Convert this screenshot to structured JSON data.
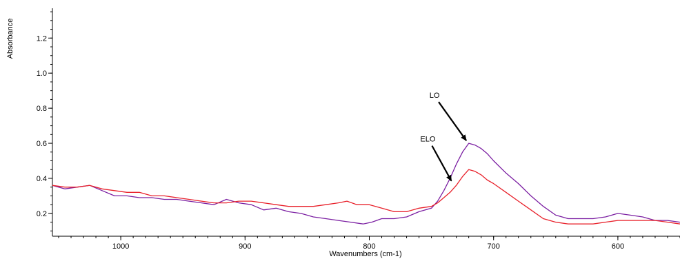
{
  "chart_data": {
    "type": "line",
    "xlabel": "Wavenumbers (cm-1)",
    "ylabel": "Absorbance",
    "xlim": [
      1055,
      550
    ],
    "ylim": [
      0.07,
      1.37
    ],
    "x_reversed": true,
    "x_ticks": [
      1000,
      900,
      800,
      700,
      600
    ],
    "y_ticks": [
      0.2,
      0.4,
      0.6,
      0.8,
      1.0,
      1.2
    ],
    "x_minor_step": 10,
    "y_minor_step": 0.05,
    "grid": false,
    "legend": "none",
    "series": [
      {
        "name": "LO",
        "color": "#7b1fa2",
        "x": [
          1055,
          1045,
          1035,
          1025,
          1015,
          1005,
          995,
          985,
          975,
          965,
          955,
          945,
          935,
          925,
          915,
          905,
          895,
          885,
          875,
          865,
          855,
          845,
          835,
          825,
          815,
          805,
          798,
          790,
          780,
          770,
          760,
          750,
          745,
          740,
          735,
          730,
          725,
          720,
          715,
          710,
          705,
          700,
          690,
          680,
          670,
          660,
          650,
          640,
          630,
          620,
          610,
          600,
          590,
          580,
          570,
          560,
          550
        ],
        "y": [
          0.36,
          0.34,
          0.35,
          0.36,
          0.33,
          0.3,
          0.3,
          0.29,
          0.29,
          0.28,
          0.28,
          0.27,
          0.26,
          0.25,
          0.28,
          0.26,
          0.25,
          0.22,
          0.23,
          0.21,
          0.2,
          0.18,
          0.17,
          0.16,
          0.15,
          0.14,
          0.15,
          0.17,
          0.17,
          0.18,
          0.21,
          0.23,
          0.27,
          0.33,
          0.4,
          0.48,
          0.55,
          0.6,
          0.59,
          0.57,
          0.54,
          0.5,
          0.43,
          0.37,
          0.3,
          0.24,
          0.19,
          0.17,
          0.17,
          0.17,
          0.18,
          0.2,
          0.19,
          0.18,
          0.16,
          0.16,
          0.15
        ]
      },
      {
        "name": "ELO",
        "color": "#e8202a",
        "x": [
          1055,
          1045,
          1035,
          1025,
          1015,
          1005,
          995,
          985,
          975,
          965,
          955,
          945,
          935,
          925,
          915,
          905,
          895,
          885,
          875,
          865,
          855,
          845,
          835,
          825,
          818,
          810,
          800,
          795,
          790,
          780,
          770,
          760,
          750,
          745,
          740,
          735,
          730,
          725,
          720,
          715,
          710,
          705,
          700,
          690,
          680,
          670,
          660,
          650,
          640,
          630,
          620,
          610,
          600,
          590,
          580,
          570,
          560,
          550
        ],
        "y": [
          0.36,
          0.35,
          0.35,
          0.36,
          0.34,
          0.33,
          0.32,
          0.32,
          0.3,
          0.3,
          0.29,
          0.28,
          0.27,
          0.26,
          0.26,
          0.27,
          0.27,
          0.26,
          0.25,
          0.24,
          0.24,
          0.24,
          0.25,
          0.26,
          0.27,
          0.25,
          0.25,
          0.24,
          0.23,
          0.21,
          0.21,
          0.23,
          0.24,
          0.26,
          0.29,
          0.32,
          0.36,
          0.41,
          0.45,
          0.44,
          0.42,
          0.39,
          0.37,
          0.32,
          0.27,
          0.22,
          0.17,
          0.15,
          0.14,
          0.14,
          0.14,
          0.15,
          0.16,
          0.16,
          0.16,
          0.16,
          0.15,
          0.14
        ]
      }
    ],
    "annotations": [
      {
        "text": "LO",
        "arrow_to": [
          722,
          0.6
        ]
      },
      {
        "text": "ELO",
        "arrow_to": [
          734,
          0.37
        ]
      }
    ]
  }
}
